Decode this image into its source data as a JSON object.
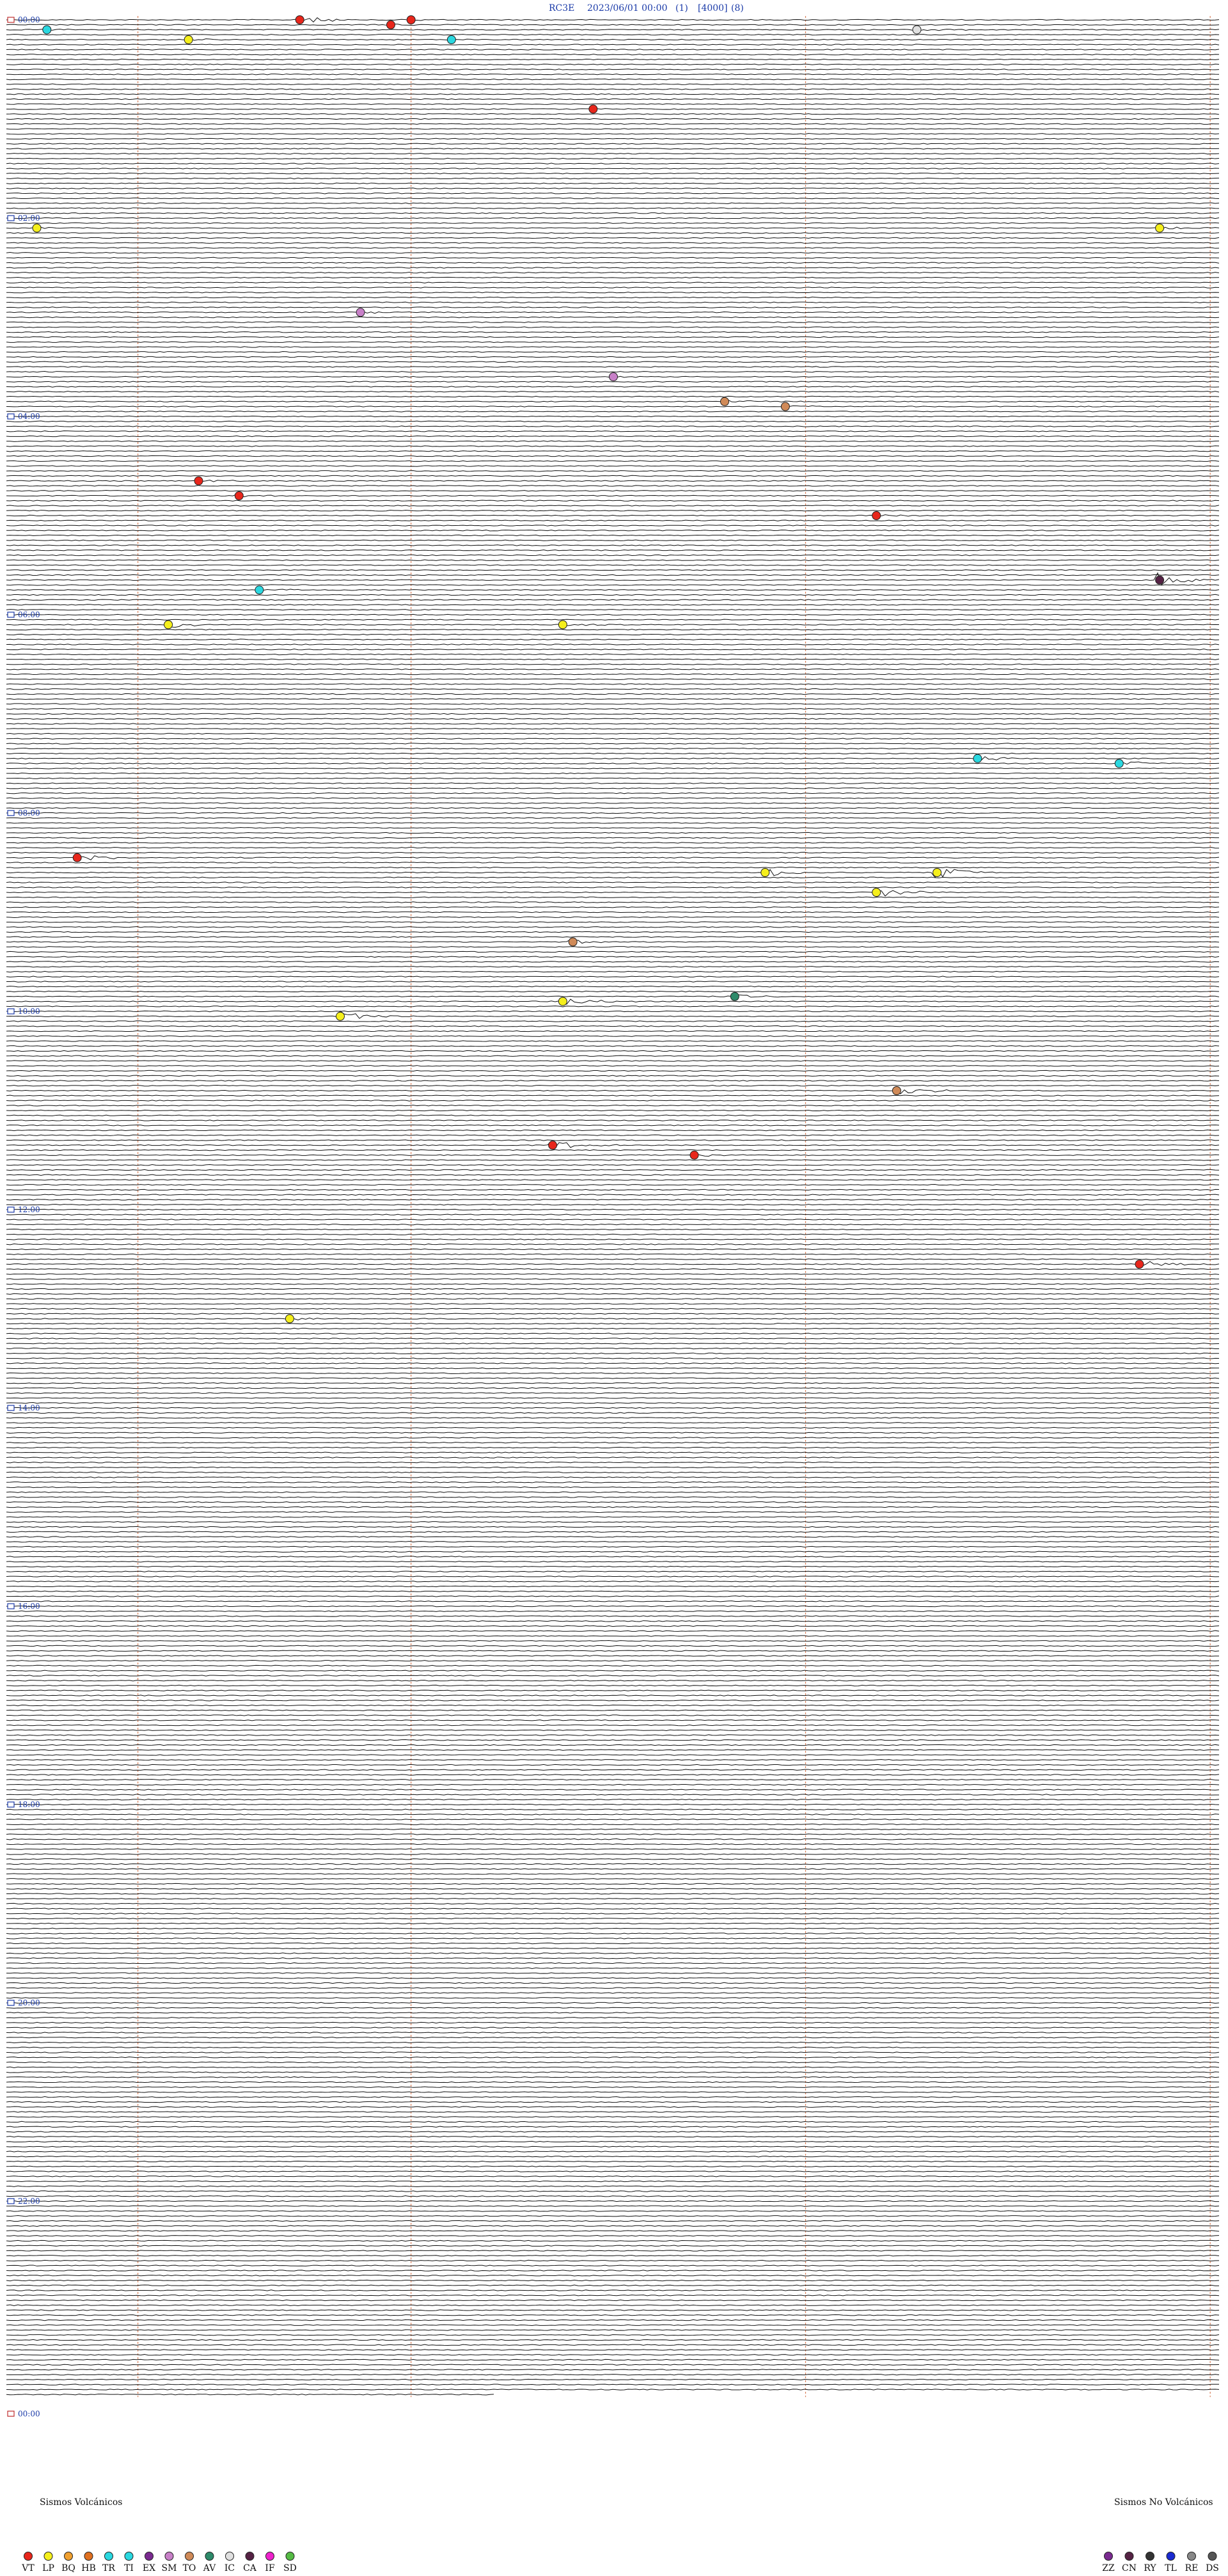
{
  "header": {
    "station": "RC3E",
    "date": "2023/06/01 00:00",
    "field1": "(1)",
    "field2": "[4000]",
    "field3": "(8)"
  },
  "chart_data": {
    "type": "seismic_drum",
    "hours": 24,
    "traces_per_hour": 20,
    "minutes_per_trace": 3,
    "start_label": "00:00",
    "end_label": "00:00",
    "hour_labels": [
      "00:00",
      "02:00",
      "04:00",
      "06:00",
      "08:00",
      "10:00",
      "12:00",
      "14:00",
      "16:00",
      "18:00",
      "20:00",
      "22:00"
    ],
    "minute_markers": [
      6.5,
      20,
      39.5,
      59.5
    ],
    "events": [
      {
        "trace": 0,
        "minute": 14.5,
        "amp": 7,
        "class": "VT"
      },
      {
        "trace": 0,
        "minute": 20,
        "amp": 2,
        "class": "VT"
      },
      {
        "trace": 1,
        "minute": 19,
        "amp": 2,
        "class": "VT"
      },
      {
        "trace": 2,
        "minute": 45,
        "amp": 4,
        "class": "IC"
      },
      {
        "trace": 2,
        "minute": 2,
        "amp": 2,
        "class": "TR"
      },
      {
        "trace": 4,
        "minute": 9,
        "amp": 2,
        "class": "LP"
      },
      {
        "trace": 4,
        "minute": 22,
        "amp": 1,
        "class": "TR"
      },
      {
        "trace": 18,
        "minute": 29,
        "amp": 1,
        "class": "VT"
      },
      {
        "trace": 42,
        "minute": 1.5,
        "amp": 2,
        "class": "LP"
      },
      {
        "trace": 42,
        "minute": 57,
        "amp": 3,
        "class": "LP"
      },
      {
        "trace": 59,
        "minute": 17.5,
        "amp": 3,
        "class": "SM"
      },
      {
        "trace": 72,
        "minute": 30,
        "amp": 2,
        "class": "SM"
      },
      {
        "trace": 77,
        "minute": 35.5,
        "amp": 3,
        "class": "TO"
      },
      {
        "trace": 78,
        "minute": 38.5,
        "amp": 2,
        "class": "TO"
      },
      {
        "trace": 93,
        "minute": 9.5,
        "amp": 3,
        "class": "VT"
      },
      {
        "trace": 96,
        "minute": 11.5,
        "amp": 3,
        "class": "VT"
      },
      {
        "trace": 100,
        "minute": 43,
        "amp": 2,
        "class": "VT"
      },
      {
        "trace": 113,
        "minute": 57,
        "amp": 10,
        "class": "CA"
      },
      {
        "trace": 115,
        "minute": 12.5,
        "amp": 3,
        "class": "TI"
      },
      {
        "trace": 122,
        "minute": 8,
        "amp": 5,
        "class": "LP"
      },
      {
        "trace": 122,
        "minute": 27.5,
        "amp": 3,
        "class": "LP"
      },
      {
        "trace": 149,
        "minute": 48,
        "amp": 5,
        "class": "TI"
      },
      {
        "trace": 150,
        "minute": 55,
        "amp": 5,
        "class": "TI"
      },
      {
        "trace": 169,
        "minute": 3.5,
        "amp": 7,
        "class": "VT"
      },
      {
        "trace": 172,
        "minute": 37.5,
        "amp": 7,
        "class": "LP"
      },
      {
        "trace": 172,
        "minute": 46,
        "amp": 10,
        "class": "LP"
      },
      {
        "trace": 176,
        "minute": 43,
        "amp": 9,
        "class": "LP"
      },
      {
        "trace": 186,
        "minute": 28,
        "amp": 3,
        "class": "TO"
      },
      {
        "trace": 197,
        "minute": 36,
        "amp": 4,
        "class": "AV"
      },
      {
        "trace": 198,
        "minute": 27.5,
        "amp": 8,
        "class": "LP"
      },
      {
        "trace": 201,
        "minute": 16.5,
        "amp": 8,
        "class": "LP"
      },
      {
        "trace": 216,
        "minute": 44,
        "amp": 8,
        "class": "TO"
      },
      {
        "trace": 227,
        "minute": 27,
        "amp": 7,
        "class": "VT"
      },
      {
        "trace": 229,
        "minute": 34,
        "amp": 3,
        "class": "VT"
      },
      {
        "trace": 251,
        "minute": 56,
        "amp": 6,
        "class": "VT"
      },
      {
        "trace": 262,
        "minute": 14,
        "amp": 3,
        "class": "LP"
      }
    ]
  },
  "legend_volcanic": {
    "title": "Sismos Volcánicos",
    "items": [
      {
        "code": "VT",
        "color": "#e8261b"
      },
      {
        "code": "LP",
        "color": "#f5ef1c"
      },
      {
        "code": "BQ",
        "color": "#f0a030"
      },
      {
        "code": "HB",
        "color": "#e07020"
      },
      {
        "code": "TR",
        "color": "#2ad8e0"
      },
      {
        "code": "TI",
        "color": "#2ad8e0"
      },
      {
        "code": "EX",
        "color": "#7a2a90"
      },
      {
        "code": "SM",
        "color": "#c880c8"
      },
      {
        "code": "TO",
        "color": "#d08a58"
      },
      {
        "code": "AV",
        "color": "#2e8a6a"
      },
      {
        "code": "IC",
        "color": "#e0e0e0"
      },
      {
        "code": "CA",
        "color": "#552244"
      },
      {
        "code": "IF",
        "color": "#ee22cc"
      },
      {
        "code": "SD",
        "color": "#55bb44"
      }
    ]
  },
  "legend_nonvolcanic": {
    "title": "Sismos No Volcánicos",
    "items": [
      {
        "code": "ZZ",
        "color": "#7a2a90"
      },
      {
        "code": "CN",
        "color": "#552244"
      },
      {
        "code": "RY",
        "color": "#333333"
      },
      {
        "code": "TL",
        "color": "#1a2ad0"
      },
      {
        "code": "RE",
        "color": "#888888"
      },
      {
        "code": "DS",
        "color": "#555555"
      }
    ]
  },
  "colors": {
    "trace": "#111111",
    "marker_line": "#d9805a",
    "header_text": "#1a3aa8"
  }
}
